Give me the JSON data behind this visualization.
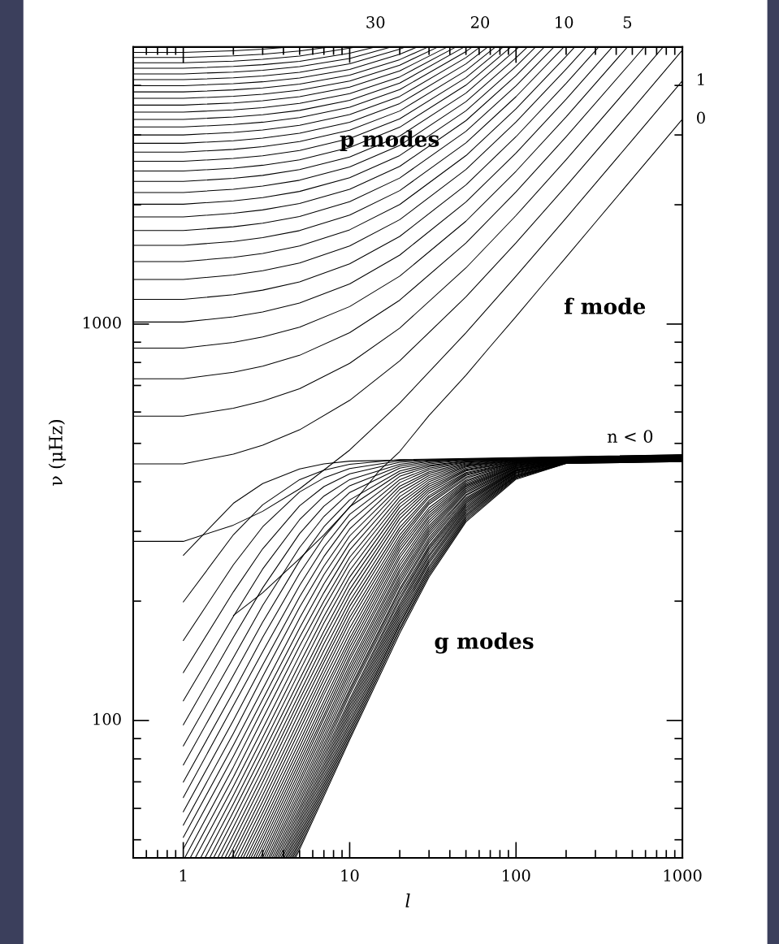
{
  "chart_data": {
    "type": "line",
    "log": "xy",
    "xlabel": "l",
    "ylabel": "ν (μHz)",
    "xlim": [
      0.5,
      1000
    ],
    "ylim": [
      45,
      5000
    ],
    "xticks": [
      {
        "value": 0.6,
        "label": null
      },
      {
        "value": 0.7,
        "label": null
      },
      {
        "value": 0.8,
        "label": null
      },
      {
        "value": 0.9,
        "label": null
      },
      1,
      {
        "value": 2,
        "label": null
      },
      {
        "value": 3,
        "label": null
      },
      {
        "value": 4,
        "label": null
      },
      {
        "value": 5,
        "label": null
      },
      {
        "value": 6,
        "label": null
      },
      {
        "value": 7,
        "label": null
      },
      {
        "value": 8,
        "label": null
      },
      {
        "value": 9,
        "label": null
      },
      10,
      {
        "value": 20,
        "label": null
      },
      {
        "value": 30,
        "label": null
      },
      {
        "value": 40,
        "label": null
      },
      {
        "value": 50,
        "label": null
      },
      {
        "value": 60,
        "label": null
      },
      {
        "value": 70,
        "label": null
      },
      {
        "value": 80,
        "label": null
      },
      {
        "value": 90,
        "label": null
      },
      100,
      {
        "value": 200,
        "label": null
      },
      {
        "value": 300,
        "label": null
      },
      {
        "value": 400,
        "label": null
      },
      {
        "value": 500,
        "label": null
      },
      {
        "value": 600,
        "label": null
      },
      {
        "value": 700,
        "label": null
      },
      {
        "value": 800,
        "label": null
      },
      {
        "value": 900,
        "label": null
      },
      1000
    ],
    "yticks": [
      {
        "value": 50,
        "label": null
      },
      {
        "value": 60,
        "label": null
      },
      {
        "value": 70,
        "label": null
      },
      {
        "value": 80,
        "label": null
      },
      {
        "value": 90,
        "label": null
      },
      100,
      {
        "value": 200,
        "label": null
      },
      {
        "value": 300,
        "label": null
      },
      {
        "value": 400,
        "label": null
      },
      {
        "value": 500,
        "label": null
      },
      {
        "value": 600,
        "label": null
      },
      {
        "value": 700,
        "label": null
      },
      {
        "value": 800,
        "label": null
      },
      {
        "value": 900,
        "label": null
      },
      1000,
      {
        "value": 2000,
        "label": null
      },
      {
        "value": 3000,
        "label": null
      },
      {
        "value": 4000,
        "label": null
      }
    ],
    "color": "#000000",
    "annotations": [
      {
        "text": "p modes",
        "x": 17.4,
        "y": 2900
      },
      "f mode",
      "g modes",
      "n < 0",
      {
        "text": "30",
        "x": 14.3,
        "y": 5000
      },
      {
        "text": "20",
        "x": 60.8,
        "y": 5000
      },
      {
        "text": "10",
        "x": 194,
        "y": 5000
      },
      {
        "text": "5",
        "x": 467,
        "y": 5000
      },
      {
        "text": "1",
        "x": 1000,
        "y": 4110
      },
      {
        "text": "0",
        "x": 1000,
        "y": 3290
      }
    ],
    "series": [
      {
        "x": [
          0.5,
          1,
          2,
          3,
          5,
          10,
          20,
          50,
          100,
          200,
          500,
          1000
        ],
        "values": [
          283,
          283,
          311,
          337,
          384,
          481,
          632,
          951,
          1321,
          1852,
          2912,
          4110
        ]
      },
      {
        "x": [
          0.5,
          1,
          2,
          3,
          5,
          10,
          20,
          50,
          100,
          200,
          500,
          1000
        ],
        "values": [
          444,
          444,
          470,
          495,
          541,
          642,
          808,
          1171,
          1603,
          2228,
          3486,
          4913
        ]
      },
      {
        "x": [
          0.5,
          1,
          2,
          3,
          5,
          10,
          20,
          50,
          100,
          200,
          500,
          766
        ],
        "values": [
          586,
          586,
          613,
          639,
          687,
          796,
          977,
          1386,
          1879,
          2598,
          4052,
          5000
        ]
      },
      {
        "x": [
          0.5,
          1,
          2,
          3,
          5,
          10,
          20,
          50,
          100,
          200,
          500,
          590
        ],
        "values": [
          728,
          728,
          756,
          783,
          834,
          951,
          1149,
          1602,
          2155,
          2967,
          4612,
          5000
        ]
      },
      {
        "x": [
          0.5,
          1,
          2,
          3,
          5,
          10,
          20,
          50,
          100,
          200,
          467
        ],
        "values": [
          870,
          870,
          899,
          928,
          982,
          1107,
          1321,
          1818,
          2430,
          3332,
          5000
        ]
      },
      {
        "x": [
          0.5,
          1,
          2,
          3,
          5,
          10,
          20,
          50,
          100,
          200,
          379
        ],
        "values": [
          1012,
          1012,
          1043,
          1073,
          1130,
          1263,
          1493,
          2032,
          2701,
          3692,
          5000
        ]
      },
      {
        "x": [
          0.5,
          1,
          2,
          3,
          5,
          10,
          20,
          50,
          100,
          200,
          314
        ],
        "values": [
          1154,
          1154,
          1186,
          1218,
          1278,
          1419,
          1664,
          2245,
          2970,
          4048,
          5000
        ]
      },
      {
        "x": [
          0.5,
          1,
          2,
          3,
          5,
          10,
          20,
          50,
          100,
          200,
          264
        ],
        "values": [
          1296,
          1296,
          1330,
          1363,
          1426,
          1574,
          1834,
          2455,
          3234,
          4397,
          5000
        ]
      },
      {
        "x": [
          0.5,
          1,
          2,
          3,
          5,
          10,
          20,
          50,
          100,
          200,
          225
        ],
        "values": [
          1438,
          1438,
          1473,
          1507,
          1574,
          1729,
          2003,
          2661,
          3492,
          4736,
          5000
        ]
      },
      {
        "x": [
          0.5,
          1,
          2,
          3,
          5,
          10,
          20,
          50,
          100,
          194
        ],
        "values": [
          1580,
          1580,
          1616,
          1652,
          1721,
          1883,
          2171,
          2865,
          3747,
          5000
        ]
      },
      {
        "x": [
          0.5,
          1,
          2,
          3,
          5,
          10,
          20,
          50,
          100,
          169
        ],
        "values": [
          1722,
          1722,
          1760,
          1797,
          1868,
          2036,
          2336,
          3064,
          3993,
          5000
        ]
      },
      {
        "x": [
          0.5,
          1,
          2,
          3,
          5,
          10,
          20,
          50,
          100,
          148
        ],
        "values": [
          1864,
          1864,
          1903,
          1941,
          2015,
          2188,
          2500,
          3260,
          4234,
          5000
        ]
      },
      {
        "x": [
          0.5,
          1,
          2,
          3,
          5,
          10,
          20,
          50,
          100,
          131
        ],
        "values": [
          2006,
          2006,
          2046,
          2085,
          2161,
          2340,
          2662,
          3453,
          4470,
          5000
        ]
      },
      {
        "x": [
          0.5,
          1,
          2,
          3,
          5,
          10,
          20,
          50,
          100,
          117
        ],
        "values": [
          2148,
          2148,
          2189,
          2229,
          2306,
          2490,
          2822,
          3640,
          4698,
          5000
        ]
      },
      {
        "x": [
          0.5,
          1,
          2,
          3,
          5,
          10,
          20,
          50,
          100,
          104
        ],
        "values": [
          2290,
          2290,
          2331,
          2372,
          2452,
          2640,
          2981,
          3826,
          4922,
          5000
        ]
      },
      {
        "x": [
          0.5,
          1,
          2,
          3,
          5,
          10,
          20,
          50,
          93.2
        ],
        "values": [
          2432,
          2432,
          2474,
          2516,
          2597,
          2789,
          3138,
          4007,
          5000
        ]
      },
      {
        "x": [
          0.5,
          1,
          2,
          3,
          5,
          10,
          20,
          50,
          83.7
        ],
        "values": [
          2574,
          2574,
          2617,
          2659,
          2741,
          2937,
          3294,
          4185,
          5000
        ]
      },
      {
        "x": [
          0.5,
          1,
          2,
          3,
          5,
          10,
          20,
          50,
          75.2
        ],
        "values": [
          2716,
          2716,
          2759,
          2802,
          2886,
          3084,
          3448,
          4360,
          5000
        ]
      },
      {
        "x": [
          0.5,
          1,
          2,
          3,
          5,
          10,
          20,
          50,
          67.6
        ],
        "values": [
          2858,
          2858,
          2902,
          2945,
          3030,
          3231,
          3601,
          4533,
          5000
        ]
      },
      {
        "x": [
          0.5,
          1,
          2,
          3,
          5,
          10,
          20,
          50,
          60.8
        ],
        "values": [
          3000,
          3000,
          3044,
          3088,
          3173,
          3378,
          3753,
          4703,
          5000
        ]
      },
      {
        "x": [
          0.5,
          1,
          2,
          3,
          5,
          10,
          20,
          50,
          54.5
        ],
        "values": [
          3142,
          3142,
          3187,
          3231,
          3317,
          3523,
          3904,
          4870,
          5000
        ]
      },
      {
        "x": [
          0.5,
          1,
          2,
          3,
          5,
          10,
          20,
          48.8
        ],
        "values": [
          3284,
          3284,
          3329,
          3373,
          3460,
          3669,
          4054,
          5000
        ]
      },
      {
        "x": [
          0.5,
          1,
          2,
          3,
          5,
          10,
          20,
          43.5
        ],
        "values": [
          3426,
          3426,
          3471,
          3516,
          3604,
          3814,
          4203,
          5000
        ]
      },
      {
        "x": [
          0.5,
          1,
          2,
          3,
          5,
          10,
          20,
          38.6
        ],
        "values": [
          3568,
          3568,
          3614,
          3658,
          3747,
          3959,
          4352,
          5000
        ]
      },
      {
        "x": [
          0.5,
          1,
          2,
          3,
          5,
          10,
          20,
          33.9
        ],
        "values": [
          3710,
          3710,
          3756,
          3801,
          3890,
          4103,
          4500,
          5000
        ]
      },
      {
        "x": [
          0.5,
          1,
          2,
          3,
          5,
          10,
          20,
          29.6
        ],
        "values": [
          3852,
          3852,
          3898,
          3943,
          4033,
          4247,
          4647,
          5000
        ]
      },
      {
        "x": [
          0.5,
          1,
          2,
          3,
          5,
          10,
          20,
          25.5
        ],
        "values": [
          3994,
          3994,
          4040,
          4086,
          4175,
          4391,
          4794,
          5000
        ]
      },
      {
        "x": [
          0.5,
          1,
          2,
          3,
          5,
          10,
          20,
          21.6
        ],
        "values": [
          4136,
          4136,
          4182,
          4228,
          4318,
          4535,
          4940,
          5000
        ]
      },
      {
        "x": [
          0.5,
          1,
          2,
          3,
          5,
          10,
          17.8
        ],
        "values": [
          4278,
          4278,
          4324,
          4370,
          4460,
          4679,
          5000
        ]
      },
      {
        "x": [
          0.5,
          1,
          2,
          3,
          5,
          10,
          14.3
        ],
        "values": [
          4420,
          4420,
          4466,
          4512,
          4603,
          4821,
          5000
        ]
      },
      {
        "x": [
          0.5,
          1,
          2,
          3,
          5,
          10,
          10.8
        ],
        "values": [
          4562,
          4562,
          4608,
          4654,
          4745,
          4965,
          5000
        ]
      },
      {
        "x": [
          0.5,
          1,
          2,
          3,
          5,
          7.53
        ],
        "values": [
          4704,
          4704,
          4751,
          4797,
          4888,
          5000
        ]
      },
      {
        "x": [
          0.5,
          1,
          2,
          3,
          4.34
        ],
        "values": [
          4846,
          4846,
          4893,
          4939,
          5000
        ]
      },
      {
        "x": [
          2,
          3,
          5,
          7,
          10,
          15,
          20,
          30,
          50,
          70,
          100,
          150,
          200,
          300,
          500,
          700,
          1000
        ],
        "values": [
          184,
          210,
          256,
          294,
          345,
          426,
          477,
          588,
          743,
          878,
          1045,
          1279,
          1474,
          1805,
          2328,
          2753,
          3290
        ]
      },
      {
        "x": [
          1,
          2,
          3,
          5,
          7,
          10,
          1000
        ],
        "values": [
          261,
          353,
          396,
          431,
          444,
          451,
          468
        ]
      },
      {
        "x": [
          1,
          2,
          3,
          5,
          7,
          10,
          20,
          1000
        ],
        "values": [
          199,
          294,
          350,
          405,
          428,
          443,
          455,
          468
        ]
      },
      {
        "x": [
          1,
          2,
          3,
          5,
          7,
          10,
          20,
          1000
        ],
        "values": [
          159,
          247,
          308,
          377,
          409,
          432,
          452,
          467
        ]
      },
      {
        "x": [
          1,
          2,
          3,
          5,
          7,
          10,
          20,
          30,
          1000
        ],
        "values": [
          132,
          211,
          271,
          348,
          389,
          419,
          448,
          454,
          467
        ]
      },
      {
        "x": [
          1,
          2,
          3,
          5,
          7,
          10,
          20,
          30,
          1000
        ],
        "values": [
          112,
          183,
          241,
          321,
          368,
          405,
          443,
          452,
          467
        ]
      },
      {
        "x": [
          1,
          2,
          3,
          5,
          7,
          10,
          20,
          30,
          50,
          1000
        ],
        "values": [
          97.5,
          162,
          216,
          296,
          347,
          391,
          438,
          450,
          456,
          466
        ]
      },
      {
        "x": [
          1,
          2,
          3,
          5,
          7,
          10,
          20,
          30,
          50,
          1000
        ],
        "values": [
          86.2,
          144,
          195,
          273,
          327,
          376,
          433,
          447,
          455,
          466
        ]
      },
      {
        "x": [
          1,
          2,
          3,
          5,
          7,
          10,
          20,
          30,
          50,
          1000
        ],
        "values": [
          77.2,
          130,
          177,
          253,
          308,
          360,
          426,
          444,
          454,
          466
        ]
      },
      {
        "x": [
          1,
          2,
          3,
          5,
          7,
          10,
          20,
          30,
          50,
          1000
        ],
        "values": [
          69.9,
          118,
          162,
          235,
          290,
          346,
          420,
          440,
          452,
          465
        ]
      },
      {
        "x": [
          1,
          2,
          3,
          5,
          7,
          10,
          20,
          30,
          50,
          1000
        ],
        "values": [
          63.9,
          109,
          149,
          219,
          274,
          331,
          413,
          437,
          451,
          465
        ]
      },
      {
        "x": [
          1,
          2,
          3,
          5,
          7,
          10,
          20,
          30,
          50,
          100,
          1000
        ],
        "values": [
          58.8,
          100,
          138,
          205,
          259,
          318,
          405,
          433,
          449,
          457,
          465
        ]
      },
      {
        "x": [
          1,
          2,
          3,
          5,
          7,
          10,
          20,
          30,
          50,
          100,
          1000
        ],
        "values": [
          54.4,
          92.8,
          129,
          193,
          245,
          304,
          398,
          429,
          448,
          457,
          465
        ]
      },
      {
        "x": [
          1,
          2,
          3,
          5,
          7,
          10,
          20,
          30,
          50,
          100,
          1000
        ],
        "values": [
          50.7,
          86.6,
          120,
          181,
          233,
          292,
          390,
          424,
          446,
          456,
          464
        ]
      },
      {
        "x": [
          1,
          2,
          3,
          5,
          7,
          10,
          20,
          30,
          50,
          100,
          1000
        ],
        "values": [
          47.4,
          81.2,
          113,
          171,
          221,
          280,
          383,
          420,
          444,
          456,
          464
        ]
      },
      {
        "x": [
          1.02,
          2,
          3,
          5,
          7,
          10,
          20,
          30,
          50,
          100,
          1000
        ],
        "values": [
          45,
          76.3,
          107,
          162,
          210,
          269,
          375,
          415,
          442,
          455,
          464
        ]
      },
      {
        "x": [
          1.1,
          2,
          3,
          5,
          7,
          10,
          20,
          30,
          50,
          100,
          1000
        ],
        "values": [
          45,
          72,
          101,
          154,
          200,
          258,
          367,
          410,
          440,
          454,
          463
        ]
      },
      {
        "x": [
          1.18,
          2,
          3,
          5,
          7,
          10,
          20,
          30,
          50,
          100,
          1000
        ],
        "values": [
          45,
          68.2,
          95.3,
          146,
          192,
          249,
          359,
          405,
          438,
          454,
          463
        ]
      },
      {
        "x": [
          1.27,
          2,
          3,
          5,
          7,
          10,
          20,
          30,
          50,
          100,
          1000
        ],
        "values": [
          45,
          64.7,
          90.6,
          139,
          183,
          239,
          352,
          400,
          436,
          453,
          463
        ]
      },
      {
        "x": [
          1.35,
          2,
          3,
          5,
          7,
          10,
          20,
          30,
          50,
          100,
          1000
        ],
        "values": [
          45,
          61.6,
          86.3,
          133,
          176,
          230,
          345,
          395,
          433,
          453,
          462
        ]
      },
      {
        "x": [
          1.44,
          2,
          3,
          5,
          7,
          10,
          20,
          30,
          50,
          100,
          1000
        ],
        "values": [
          45,
          58.8,
          82.4,
          127,
          168,
          222,
          337,
          390,
          430,
          452,
          462
        ]
      },
      {
        "x": [
          1.52,
          2,
          3,
          5,
          7,
          10,
          20,
          30,
          50,
          100,
          1000
        ],
        "values": [
          45,
          56.2,
          78.8,
          122,
          162,
          214,
          330,
          385,
          428,
          451,
          462
        ]
      },
      {
        "x": [
          1.61,
          2,
          3,
          5,
          7,
          10,
          20,
          30,
          50,
          100,
          200,
          1000
        ],
        "values": [
          45,
          53.8,
          75.5,
          117,
          156,
          207,
          323,
          380,
          426,
          450,
          458,
          461
        ]
      },
      {
        "x": [
          1.69,
          2,
          3,
          5,
          7,
          10,
          20,
          30,
          50,
          100,
          200,
          1000
        ],
        "values": [
          45,
          51.6,
          72.5,
          113,
          150,
          200,
          315,
          375,
          422,
          449,
          457,
          461
        ]
      },
      {
        "x": [
          1.78,
          2,
          3,
          5,
          7,
          10,
          20,
          30,
          50,
          100,
          200,
          1000
        ],
        "values": [
          45,
          49.6,
          69.8,
          109,
          144,
          194,
          307,
          369,
          420,
          448,
          457,
          461
        ]
      },
      {
        "x": [
          1.86,
          2,
          3,
          5,
          7,
          10,
          20,
          30,
          50,
          100,
          200,
          1000
        ],
        "values": [
          45,
          47.7,
          67.1,
          105,
          140,
          188,
          301,
          365,
          417,
          447,
          457,
          460
        ]
      },
      {
        "x": [
          1.95,
          3,
          5,
          7,
          10,
          20,
          30,
          50,
          100,
          200,
          1000
        ],
        "values": [
          45,
          64.7,
          101,
          135,
          182,
          294,
          359,
          415,
          447,
          457,
          460
        ]
      },
      {
        "x": [
          2.03,
          3,
          5,
          7,
          10,
          20,
          30,
          50,
          100,
          200,
          1000
        ],
        "values": [
          45,
          62.5,
          97.7,
          131,
          177,
          288,
          355,
          411,
          446,
          456,
          460
        ]
      },
      {
        "x": [
          2.12,
          3,
          5,
          7,
          10,
          20,
          30,
          50,
          100,
          200,
          1000
        ],
        "values": [
          45,
          60.4,
          94.5,
          127,
          171,
          283,
          351,
          408,
          445,
          456,
          459
        ]
      },
      {
        "x": [
          2.21,
          3,
          5,
          7,
          10,
          20,
          30,
          50,
          100,
          200,
          1000
        ],
        "values": [
          45,
          58.4,
          91.3,
          123,
          166,
          278,
          344,
          404,
          444,
          456,
          459
        ]
      },
      {
        "x": [
          2.29,
          3,
          5,
          7,
          10,
          20,
          30,
          50,
          100,
          200,
          1000
        ],
        "values": [
          45,
          56.6,
          88.4,
          119,
          161,
          273,
          339,
          401,
          443,
          455,
          459
        ]
      },
      {
        "x": [
          2.38,
          3,
          5,
          7,
          10,
          20,
          30,
          50,
          100,
          200,
          1000
        ],
        "values": [
          45,
          54.8,
          85.7,
          116,
          157,
          268,
          334,
          398,
          442,
          455,
          459
        ]
      },
      {
        "x": [
          2.47,
          3,
          5,
          7,
          10,
          20,
          30,
          50,
          100,
          200,
          1000
        ],
        "values": [
          45,
          53.2,
          83.2,
          112,
          153,
          262,
          329,
          395,
          441,
          455,
          458
        ]
      },
      {
        "x": [
          2.55,
          3,
          5,
          7,
          10,
          20,
          30,
          50,
          100,
          200,
          1000
        ],
        "values": [
          45,
          51.7,
          80.8,
          109,
          149,
          257,
          325,
          392,
          439,
          455,
          458
        ]
      },
      {
        "x": [
          2.64,
          3,
          5,
          7,
          10,
          20,
          30,
          50,
          100,
          200,
          1000
        ],
        "values": [
          45,
          50.3,
          78.6,
          106,
          145,
          251,
          320,
          390,
          438,
          454,
          458
        ]
      },
      {
        "x": [
          2.72,
          3,
          5,
          7,
          10,
          20,
          30,
          50,
          100,
          200,
          1000
        ],
        "values": [
          45,
          48.9,
          76.6,
          103,
          142,
          246,
          315,
          387,
          437,
          454,
          457
        ]
      },
      {
        "x": [
          2.81,
          3,
          5,
          7,
          10,
          20,
          30,
          50,
          100,
          200,
          1000
        ],
        "values": [
          45,
          47.6,
          74.6,
          101,
          138,
          241,
          310,
          384,
          437,
          454,
          457
        ]
      },
      {
        "x": [
          2.9,
          5,
          7,
          10,
          20,
          30,
          50,
          100,
          200,
          1000
        ],
        "values": [
          45,
          72.7,
          98.2,
          135,
          237,
          306,
          381,
          435,
          453,
          457
        ]
      },
      {
        "x": [
          2.99,
          5,
          7,
          10,
          20,
          30,
          50,
          100,
          200,
          1000
        ],
        "values": [
          45,
          70.9,
          95.9,
          132,
          232,
          302,
          378,
          434,
          453,
          456
        ]
      },
      {
        "x": [
          3.07,
          5,
          7,
          10,
          20,
          30,
          50,
          100,
          200,
          1000
        ],
        "values": [
          45,
          69.2,
          93.6,
          129,
          228,
          298,
          375,
          433,
          453,
          456
        ]
      },
      {
        "x": [
          3.16,
          5,
          7,
          10,
          20,
          30,
          50,
          100,
          200,
          1000
        ],
        "values": [
          45,
          67.5,
          91.4,
          126,
          224,
          294,
          371,
          432,
          452,
          456
        ]
      },
      {
        "x": [
          3.25,
          5,
          7,
          10,
          20,
          30,
          50,
          100,
          200,
          1000
        ],
        "values": [
          45,
          66,
          89.4,
          123,
          220,
          289,
          369,
          430,
          452,
          455
        ]
      },
      {
        "x": [
          3.33,
          5,
          7,
          10,
          20,
          30,
          50,
          100,
          200,
          1000
        ],
        "values": [
          45,
          64.6,
          87.4,
          120,
          215,
          285,
          365,
          429,
          452,
          455
        ]
      },
      {
        "x": [
          3.42,
          5,
          7,
          10,
          20,
          30,
          50,
          100,
          200,
          1000
        ],
        "values": [
          45,
          63.1,
          85.6,
          118,
          212,
          281,
          362,
          428,
          451,
          455
        ]
      },
      {
        "x": [
          3.51,
          5,
          7,
          10,
          20,
          30,
          50,
          100,
          200,
          1000
        ],
        "values": [
          45,
          61.8,
          83.6,
          116,
          208,
          276,
          359,
          427,
          451,
          454
        ]
      },
      {
        "x": [
          3.59,
          5,
          7,
          10,
          20,
          30,
          50,
          100,
          200,
          1000
        ],
        "values": [
          45,
          60.4,
          81.9,
          113,
          204,
          273,
          356,
          426,
          450,
          454
        ]
      },
      {
        "x": [
          3.68,
          5,
          7,
          10,
          20,
          30,
          50,
          100,
          200,
          1000
        ],
        "values": [
          45,
          59.2,
          80.2,
          111,
          201,
          270,
          353,
          425,
          450,
          454
        ]
      },
      {
        "x": [
          3.77,
          5,
          7,
          10,
          20,
          30,
          50,
          100,
          200,
          1000
        ],
        "values": [
          45,
          58,
          78.5,
          109,
          197,
          266,
          350,
          423,
          449,
          453
        ]
      },
      {
        "x": [
          3.86,
          5,
          7,
          10,
          20,
          30,
          50,
          100,
          200,
          1000
        ],
        "values": [
          45,
          56.8,
          77,
          107,
          194,
          262,
          347,
          422,
          449,
          453
        ]
      },
      {
        "x": [
          3.94,
          5,
          7,
          10,
          20,
          30,
          50,
          100,
          200,
          1000
        ],
        "values": [
          45,
          55.7,
          75.5,
          105,
          191,
          259,
          344,
          421,
          448,
          453
        ]
      },
      {
        "x": [
          4.03,
          5,
          7,
          10,
          20,
          30,
          50,
          100,
          200,
          1000
        ],
        "values": [
          45,
          54.6,
          74.1,
          103,
          188,
          255,
          341,
          419,
          448,
          452
        ]
      },
      {
        "x": [
          4.12,
          5,
          7,
          10,
          20,
          30,
          50,
          100,
          200,
          1000
        ],
        "values": [
          45,
          53.6,
          72.7,
          101,
          185,
          252,
          338,
          417,
          447,
          452
        ]
      },
      {
        "x": [
          4.2,
          5,
          7,
          10,
          20,
          30,
          50,
          100,
          200,
          1000
        ],
        "values": [
          45,
          52.6,
          71.3,
          99,
          182,
          249,
          335,
          415,
          447,
          452
        ]
      },
      {
        "x": [
          4.29,
          5,
          7,
          10,
          20,
          30,
          50,
          100,
          200,
          1000
        ],
        "values": [
          45,
          51.6,
          70,
          97.3,
          179,
          245,
          332,
          414,
          447,
          452
        ]
      },
      {
        "x": [
          4.38,
          5,
          7,
          10,
          20,
          30,
          50,
          100,
          200,
          1000
        ],
        "values": [
          45,
          50.7,
          68.8,
          95.6,
          176,
          242,
          329,
          413,
          446,
          451
        ]
      },
      {
        "x": [
          4.47,
          5,
          7,
          10,
          20,
          30,
          50,
          100,
          200,
          1000
        ],
        "values": [
          45,
          49.8,
          67.6,
          94,
          174,
          239,
          326,
          411,
          446,
          451
        ]
      },
      {
        "x": [
          4.55,
          5,
          7,
          10,
          20,
          30,
          50,
          100,
          200,
          1000
        ],
        "values": [
          45,
          49,
          66.4,
          92.4,
          171,
          236,
          323,
          410,
          446,
          451
        ]
      },
      {
        "x": [
          4.64,
          5,
          7,
          10,
          20,
          30,
          50,
          100,
          200,
          1000
        ],
        "values": [
          45,
          48.1,
          65.3,
          90.8,
          169,
          233,
          320,
          408,
          445,
          450
        ]
      },
      {
        "x": [
          4.73,
          5,
          7,
          10,
          20,
          30,
          50,
          100,
          200,
          1000
        ],
        "values": [
          45,
          47.3,
          64.3,
          89.4,
          166,
          230,
          317,
          406,
          445,
          450
        ]
      }
    ]
  }
}
